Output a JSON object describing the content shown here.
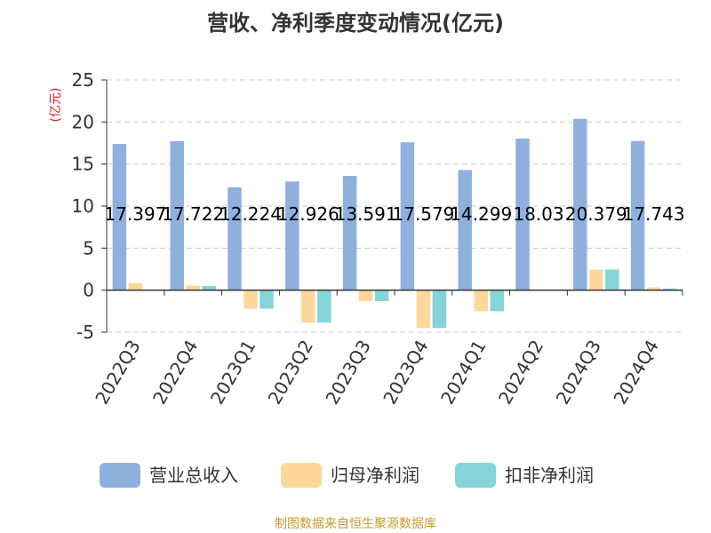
{
  "chart_data": {
    "type": "bar",
    "title": "营收、净利季度变动情况(亿元)",
    "ylabel": "(亿元)",
    "ylim": [
      -5,
      25
    ],
    "yticks": [
      "-5",
      "0",
      "5",
      "10",
      "15",
      "20",
      "25"
    ],
    "categories": [
      "2022Q3",
      "2022Q4",
      "2023Q1",
      "2023Q2",
      "2023Q3",
      "2023Q4",
      "2024Q1",
      "2024Q2",
      "2024Q3",
      "2024Q4"
    ],
    "series": [
      {
        "name": "营业总收入",
        "color": "#8eb0dd",
        "values": [
          17.397,
          17.722,
          12.224,
          12.926,
          13.591,
          17.579,
          14.299,
          18.03,
          20.379,
          17.743
        ],
        "labels": [
          "17.397",
          "17.722",
          "12.224",
          "12.926",
          "13.591",
          "17.579",
          "14.299",
          "18.03",
          "20.379",
          "17.743"
        ]
      },
      {
        "name": "归母净利润",
        "color": "#fdd89a",
        "values": [
          0.85,
          0.55,
          -2.2,
          -3.85,
          -1.3,
          -4.5,
          -2.5,
          0.05,
          2.45,
          0.35
        ]
      },
      {
        "name": "扣非净利润",
        "color": "#84d4d8",
        "values": [
          0.0,
          0.5,
          -2.2,
          -3.85,
          -1.3,
          -4.5,
          -2.5,
          0.05,
          2.45,
          0.2
        ]
      }
    ],
    "grid": true,
    "legend_position": "bottom"
  },
  "source_text": "制图数据来自恒生聚源数据库",
  "colors": {
    "unit_label": "#e02020",
    "source": "#c79a2e",
    "axis": "#333333",
    "grid": "#cccccc"
  }
}
